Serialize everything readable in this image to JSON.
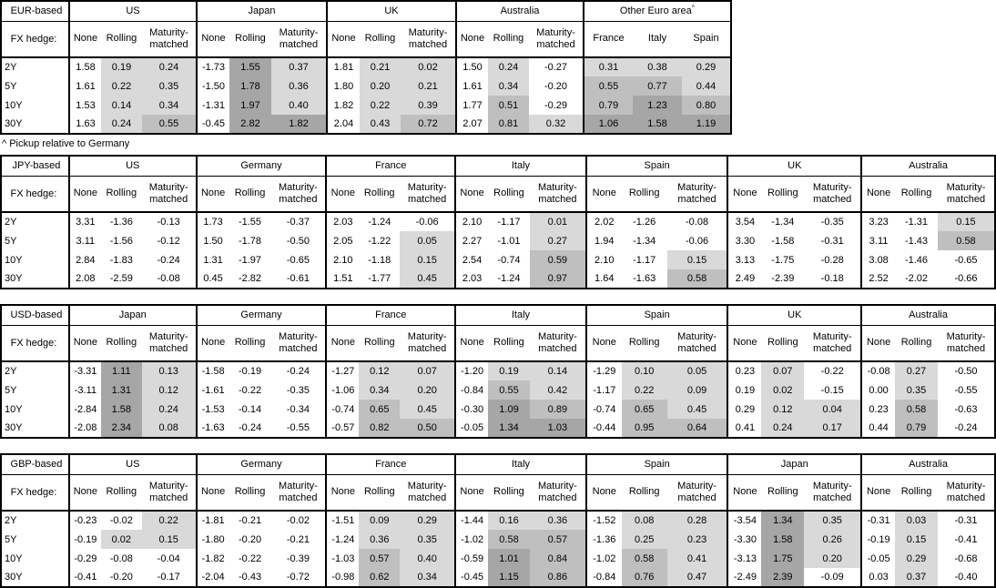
{
  "footnote": "^ Pickup relative to Germany",
  "fx_hedge_label": "FX hedge:",
  "row_labels": [
    "2Y",
    "5Y",
    "10Y",
    "30Y"
  ],
  "hedge_columns": [
    "None",
    "Rolling",
    "Maturity-matched"
  ],
  "shade_colors": {
    "light": "#d9d9d9",
    "medium": "#bfbfbf",
    "dark": "#a6a6a6"
  },
  "shade_rule": {
    "white_below": 0,
    "light_from": 0,
    "medium_from": 0.5,
    "dark_from": 1.0
  },
  "tables": [
    {
      "base": "EUR-based",
      "footnote_after": true,
      "group_widths": [
        140,
        143,
        142,
        140,
        161
      ],
      "groups": [
        {
          "name": "US",
          "rows": [
            [
              "1.58",
              "0.19",
              "0.24"
            ],
            [
              "1.61",
              "0.22",
              "0.35"
            ],
            [
              "1.53",
              "0.14",
              "0.34"
            ],
            [
              "1.63",
              "0.24",
              "0.55"
            ]
          ]
        },
        {
          "name": "Japan",
          "rows": [
            [
              "-1.73",
              "1.55",
              "0.37"
            ],
            [
              "-1.50",
              "1.78",
              "0.36"
            ],
            [
              "-1.31",
              "1.97",
              "0.40"
            ],
            [
              "-0.45",
              "2.82",
              "1.82"
            ]
          ]
        },
        {
          "name": "UK",
          "rows": [
            [
              "1.81",
              "0.21",
              "0.02"
            ],
            [
              "1.80",
              "0.20",
              "0.21"
            ],
            [
              "1.82",
              "0.22",
              "0.39"
            ],
            [
              "2.04",
              "0.43",
              "0.72"
            ]
          ]
        },
        {
          "name": "Australia",
          "rows": [
            [
              "1.50",
              "0.24",
              "-0.27"
            ],
            [
              "1.61",
              "0.34",
              "-0.20"
            ],
            [
              "1.77",
              "0.51",
              "-0.29"
            ],
            [
              "2.07",
              "0.81",
              "0.32"
            ]
          ]
        },
        {
          "name": "Other Euro area",
          "superscript": "^",
          "equal_columns": true,
          "columns": [
            "France",
            "Italy",
            "Spain"
          ],
          "shaded_columns": [
            true,
            true,
            true
          ],
          "rows": [
            [
              "0.31",
              "0.38",
              "0.29"
            ],
            [
              "0.55",
              "0.77",
              "0.44"
            ],
            [
              "0.79",
              "1.23",
              "0.80"
            ],
            [
              "1.06",
              "1.58",
              "1.19"
            ]
          ]
        }
      ]
    },
    {
      "base": "JPY-based",
      "group_widths": [
        140,
        143,
        142,
        145,
        155,
        147,
        147
      ],
      "groups": [
        {
          "name": "US",
          "rows": [
            [
              "3.31",
              "-1.36",
              "-0.13"
            ],
            [
              "3.11",
              "-1.56",
              "-0.12"
            ],
            [
              "2.84",
              "-1.83",
              "-0.24"
            ],
            [
              "2.08",
              "-2.59",
              "-0.08"
            ]
          ]
        },
        {
          "name": "Germany",
          "rows": [
            [
              "1.73",
              "-1.55",
              "-0.37"
            ],
            [
              "1.50",
              "-1.78",
              "-0.50"
            ],
            [
              "1.31",
              "-1.97",
              "-0.65"
            ],
            [
              "0.45",
              "-2.82",
              "-0.61"
            ]
          ]
        },
        {
          "name": "France",
          "rows": [
            [
              "2.03",
              "-1.24",
              "-0.06"
            ],
            [
              "2.05",
              "-1.22",
              "0.05"
            ],
            [
              "2.10",
              "-1.18",
              "0.15"
            ],
            [
              "1.51",
              "-1.77",
              "0.45"
            ]
          ]
        },
        {
          "name": "Italy",
          "rows": [
            [
              "2.10",
              "-1.17",
              "0.01"
            ],
            [
              "2.27",
              "-1.01",
              "0.27"
            ],
            [
              "2.54",
              "-0.74",
              "0.59"
            ],
            [
              "2.03",
              "-1.24",
              "0.97"
            ]
          ]
        },
        {
          "name": "Spain",
          "rows": [
            [
              "2.02",
              "-1.26",
              "-0.08"
            ],
            [
              "1.94",
              "-1.34",
              "-0.06"
            ],
            [
              "2.10",
              "-1.17",
              "0.15"
            ],
            [
              "1.64",
              "-1.63",
              "0.58"
            ]
          ]
        },
        {
          "name": "UK",
          "rows": [
            [
              "3.54",
              "-1.34",
              "-0.35"
            ],
            [
              "3.30",
              "-1.58",
              "-0.31"
            ],
            [
              "3.13",
              "-1.75",
              "-0.28"
            ],
            [
              "2.49",
              "-2.39",
              "-0.18"
            ]
          ]
        },
        {
          "name": "Australia",
          "rows": [
            [
              "3.23",
              "-1.31",
              "0.15"
            ],
            [
              "3.11",
              "-1.43",
              "0.58"
            ],
            [
              "3.08",
              "-1.46",
              "-0.65"
            ],
            [
              "2.52",
              "-2.02",
              "-0.66"
            ]
          ]
        }
      ]
    },
    {
      "base": "USD-based",
      "group_widths": [
        140,
        143,
        142,
        145,
        155,
        147,
        147
      ],
      "groups": [
        {
          "name": "Japan",
          "rows": [
            [
              "-3.31",
              "1.11",
              "0.13"
            ],
            [
              "-3.11",
              "1.31",
              "0.12"
            ],
            [
              "-2.84",
              "1.58",
              "0.24"
            ],
            [
              "-2.08",
              "2.34",
              "0.08"
            ]
          ]
        },
        {
          "name": "Germany",
          "rows": [
            [
              "-1.58",
              "-0.19",
              "-0.24"
            ],
            [
              "-1.61",
              "-0.22",
              "-0.35"
            ],
            [
              "-1.53",
              "-0.14",
              "-0.34"
            ],
            [
              "-1.63",
              "-0.24",
              "-0.55"
            ]
          ]
        },
        {
          "name": "France",
          "rows": [
            [
              "-1.27",
              "0.12",
              "0.07"
            ],
            [
              "-1.06",
              "0.34",
              "0.20"
            ],
            [
              "-0.74",
              "0.65",
              "0.45"
            ],
            [
              "-0.57",
              "0.82",
              "0.50"
            ]
          ]
        },
        {
          "name": "Italy",
          "rows": [
            [
              "-1.20",
              "0.19",
              "0.14"
            ],
            [
              "-0.84",
              "0.55",
              "0.42"
            ],
            [
              "-0.30",
              "1.09",
              "0.89"
            ],
            [
              "-0.05",
              "1.34",
              "1.03"
            ]
          ]
        },
        {
          "name": "Spain",
          "rows": [
            [
              "-1.29",
              "0.10",
              "0.05"
            ],
            [
              "-1.17",
              "0.22",
              "0.09"
            ],
            [
              "-0.74",
              "0.65",
              "0.45"
            ],
            [
              "-0.44",
              "0.95",
              "0.64"
            ]
          ]
        },
        {
          "name": "UK",
          "rows": [
            [
              "0.23",
              "0.07",
              "-0.22"
            ],
            [
              "0.19",
              "0.02",
              "-0.15"
            ],
            [
              "0.29",
              "0.12",
              "0.04"
            ],
            [
              "0.41",
              "0.24",
              "0.17"
            ]
          ]
        },
        {
          "name": "Australia",
          "rows": [
            [
              "-0.08",
              "0.27",
              "-0.50"
            ],
            [
              "0.00",
              "0.35",
              "-0.55"
            ],
            [
              "0.23",
              "0.58",
              "-0.63"
            ],
            [
              "0.44",
              "0.79",
              "-0.24"
            ]
          ]
        }
      ]
    },
    {
      "base": "GBP-based",
      "group_widths": [
        140,
        143,
        142,
        145,
        155,
        147,
        147
      ],
      "groups": [
        {
          "name": "US",
          "rows": [
            [
              "-0.23",
              "-0.02",
              "0.22"
            ],
            [
              "-0.19",
              "0.02",
              "0.15"
            ],
            [
              "-0.29",
              "-0.08",
              "-0.04"
            ],
            [
              "-0.41",
              "-0.20",
              "-0.17"
            ]
          ]
        },
        {
          "name": "Germany",
          "rows": [
            [
              "-1.81",
              "-0.21",
              "-0.02"
            ],
            [
              "-1.80",
              "-0.20",
              "-0.21"
            ],
            [
              "-1.82",
              "-0.22",
              "-0.39"
            ],
            [
              "-2.04",
              "-0.43",
              "-0.72"
            ]
          ]
        },
        {
          "name": "France",
          "rows": [
            [
              "-1.51",
              "0.09",
              "0.29"
            ],
            [
              "-1.24",
              "0.36",
              "0.35"
            ],
            [
              "-1.03",
              "0.57",
              "0.40"
            ],
            [
              "-0.98",
              "0.62",
              "0.34"
            ]
          ]
        },
        {
          "name": "Italy",
          "rows": [
            [
              "-1.44",
              "0.16",
              "0.36"
            ],
            [
              "-1.02",
              "0.58",
              "0.57"
            ],
            [
              "-0.59",
              "1.01",
              "0.84"
            ],
            [
              "-0.45",
              "1.15",
              "0.86"
            ]
          ]
        },
        {
          "name": "Spain",
          "rows": [
            [
              "-1.52",
              "0.08",
              "0.28"
            ],
            [
              "-1.36",
              "0.25",
              "0.23"
            ],
            [
              "-1.02",
              "0.58",
              "0.41"
            ],
            [
              "-0.84",
              "0.76",
              "0.47"
            ]
          ]
        },
        {
          "name": "Japan",
          "rows": [
            [
              "-3.54",
              "1.34",
              "0.35"
            ],
            [
              "-3.30",
              "1.58",
              "0.26"
            ],
            [
              "-3.13",
              "1.75",
              "0.20"
            ],
            [
              "-2.49",
              "2.39",
              "-0.09"
            ]
          ]
        },
        {
          "name": "Australia",
          "rows": [
            [
              "-0.31",
              "0.03",
              "-0.31"
            ],
            [
              "-0.19",
              "0.15",
              "-0.41"
            ],
            [
              "-0.05",
              "0.29",
              "-0.68"
            ],
            [
              "0.03",
              "0.37",
              "-0.40"
            ]
          ]
        }
      ]
    }
  ]
}
